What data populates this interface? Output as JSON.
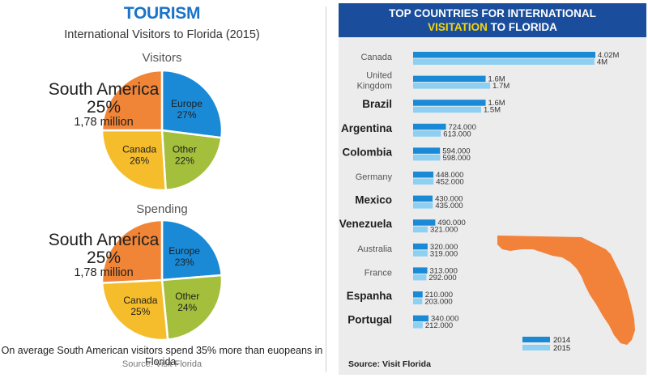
{
  "left": {
    "title": "TOURISM",
    "subtitle": "International Visitors to Florida (2015)",
    "footnote": "On average South American visitors spend 35% more than euopeans in Florida.",
    "source": "Source: Visit Florida"
  },
  "right": {
    "title_line1": "TOP COUNTRIES FOR INTERNATIONAL",
    "title_highlight": "VISITATION",
    "title_rest": " TO FLORIDA",
    "source": "Source: Visit Florida"
  },
  "colors": {
    "blue": "#1a8ad6",
    "green": "#a3bf3b",
    "yellow": "#f5bd2c",
    "orange": "#f08537",
    "bar2014": "#1a8ad6",
    "bar2015": "#8dd0f2",
    "florida": "#f2823a",
    "header": "#1a4e9c",
    "highlight": "#f5d50e"
  },
  "chart_data": [
    {
      "type": "pie",
      "title": "Visitors",
      "slices": [
        {
          "label": "Europe",
          "value": 27,
          "value_label": "27%"
        },
        {
          "label": "Other",
          "value": 22,
          "value_label": "22%"
        },
        {
          "label": "Canada",
          "value": 26,
          "value_label": "26%"
        },
        {
          "label": "South America",
          "value": 25,
          "value_label": "25%",
          "extra": "1,78 million"
        }
      ]
    },
    {
      "type": "pie",
      "title": "Spending",
      "slices": [
        {
          "label": "Europe",
          "value": 23,
          "value_label": "23%"
        },
        {
          "label": "Other",
          "value": 24,
          "value_label": "24%"
        },
        {
          "label": "Canada",
          "value": 25,
          "value_label": "25%"
        },
        {
          "label": "South America",
          "value": 25,
          "value_label": "25%",
          "extra": "1,78 million"
        }
      ]
    },
    {
      "type": "bar",
      "orientation": "horizontal",
      "title": "TOP COUNTRIES FOR INTERNATIONAL VISITATION TO FLORIDA",
      "categories": [
        {
          "name": "Canada",
          "emphasis": false
        },
        {
          "name": "United Kingdom",
          "emphasis": false
        },
        {
          "name": "Brazil",
          "emphasis": true
        },
        {
          "name": "Argentina",
          "emphasis": true
        },
        {
          "name": "Colombia",
          "emphasis": true
        },
        {
          "name": "Germany",
          "emphasis": false
        },
        {
          "name": "Mexico",
          "emphasis": true
        },
        {
          "name": "Venezuela",
          "emphasis": true
        },
        {
          "name": "Australia",
          "emphasis": false
        },
        {
          "name": "France",
          "emphasis": false
        },
        {
          "name": "Espanha",
          "emphasis": true
        },
        {
          "name": "Portugal",
          "emphasis": true
        }
      ],
      "series": [
        {
          "name": "2014",
          "values": [
            4020000,
            1600000,
            1600000,
            724000,
            594000,
            448000,
            430000,
            490000,
            320000,
            313000,
            210000,
            340000
          ],
          "labels": [
            "4.02M",
            "1.6M",
            "1.6M",
            "724.000",
            "594.000",
            "448.000",
            "430.000",
            "490.000",
            "320.000",
            "313.000",
            "210.000",
            "340.000"
          ]
        },
        {
          "name": "2015",
          "values": [
            4000000,
            1700000,
            1500000,
            613000,
            598000,
            452000,
            435000,
            321000,
            319000,
            292000,
            203000,
            212000
          ],
          "labels": [
            "4M",
            "1.7M",
            "1.5M",
            "613.000",
            "598.000",
            "452.000",
            "435.000",
            "321.000",
            "319.000",
            "292.000",
            "203.000",
            "212.000"
          ]
        }
      ],
      "xlim": [
        0,
        4020000
      ],
      "legend": "bottom-right"
    }
  ]
}
